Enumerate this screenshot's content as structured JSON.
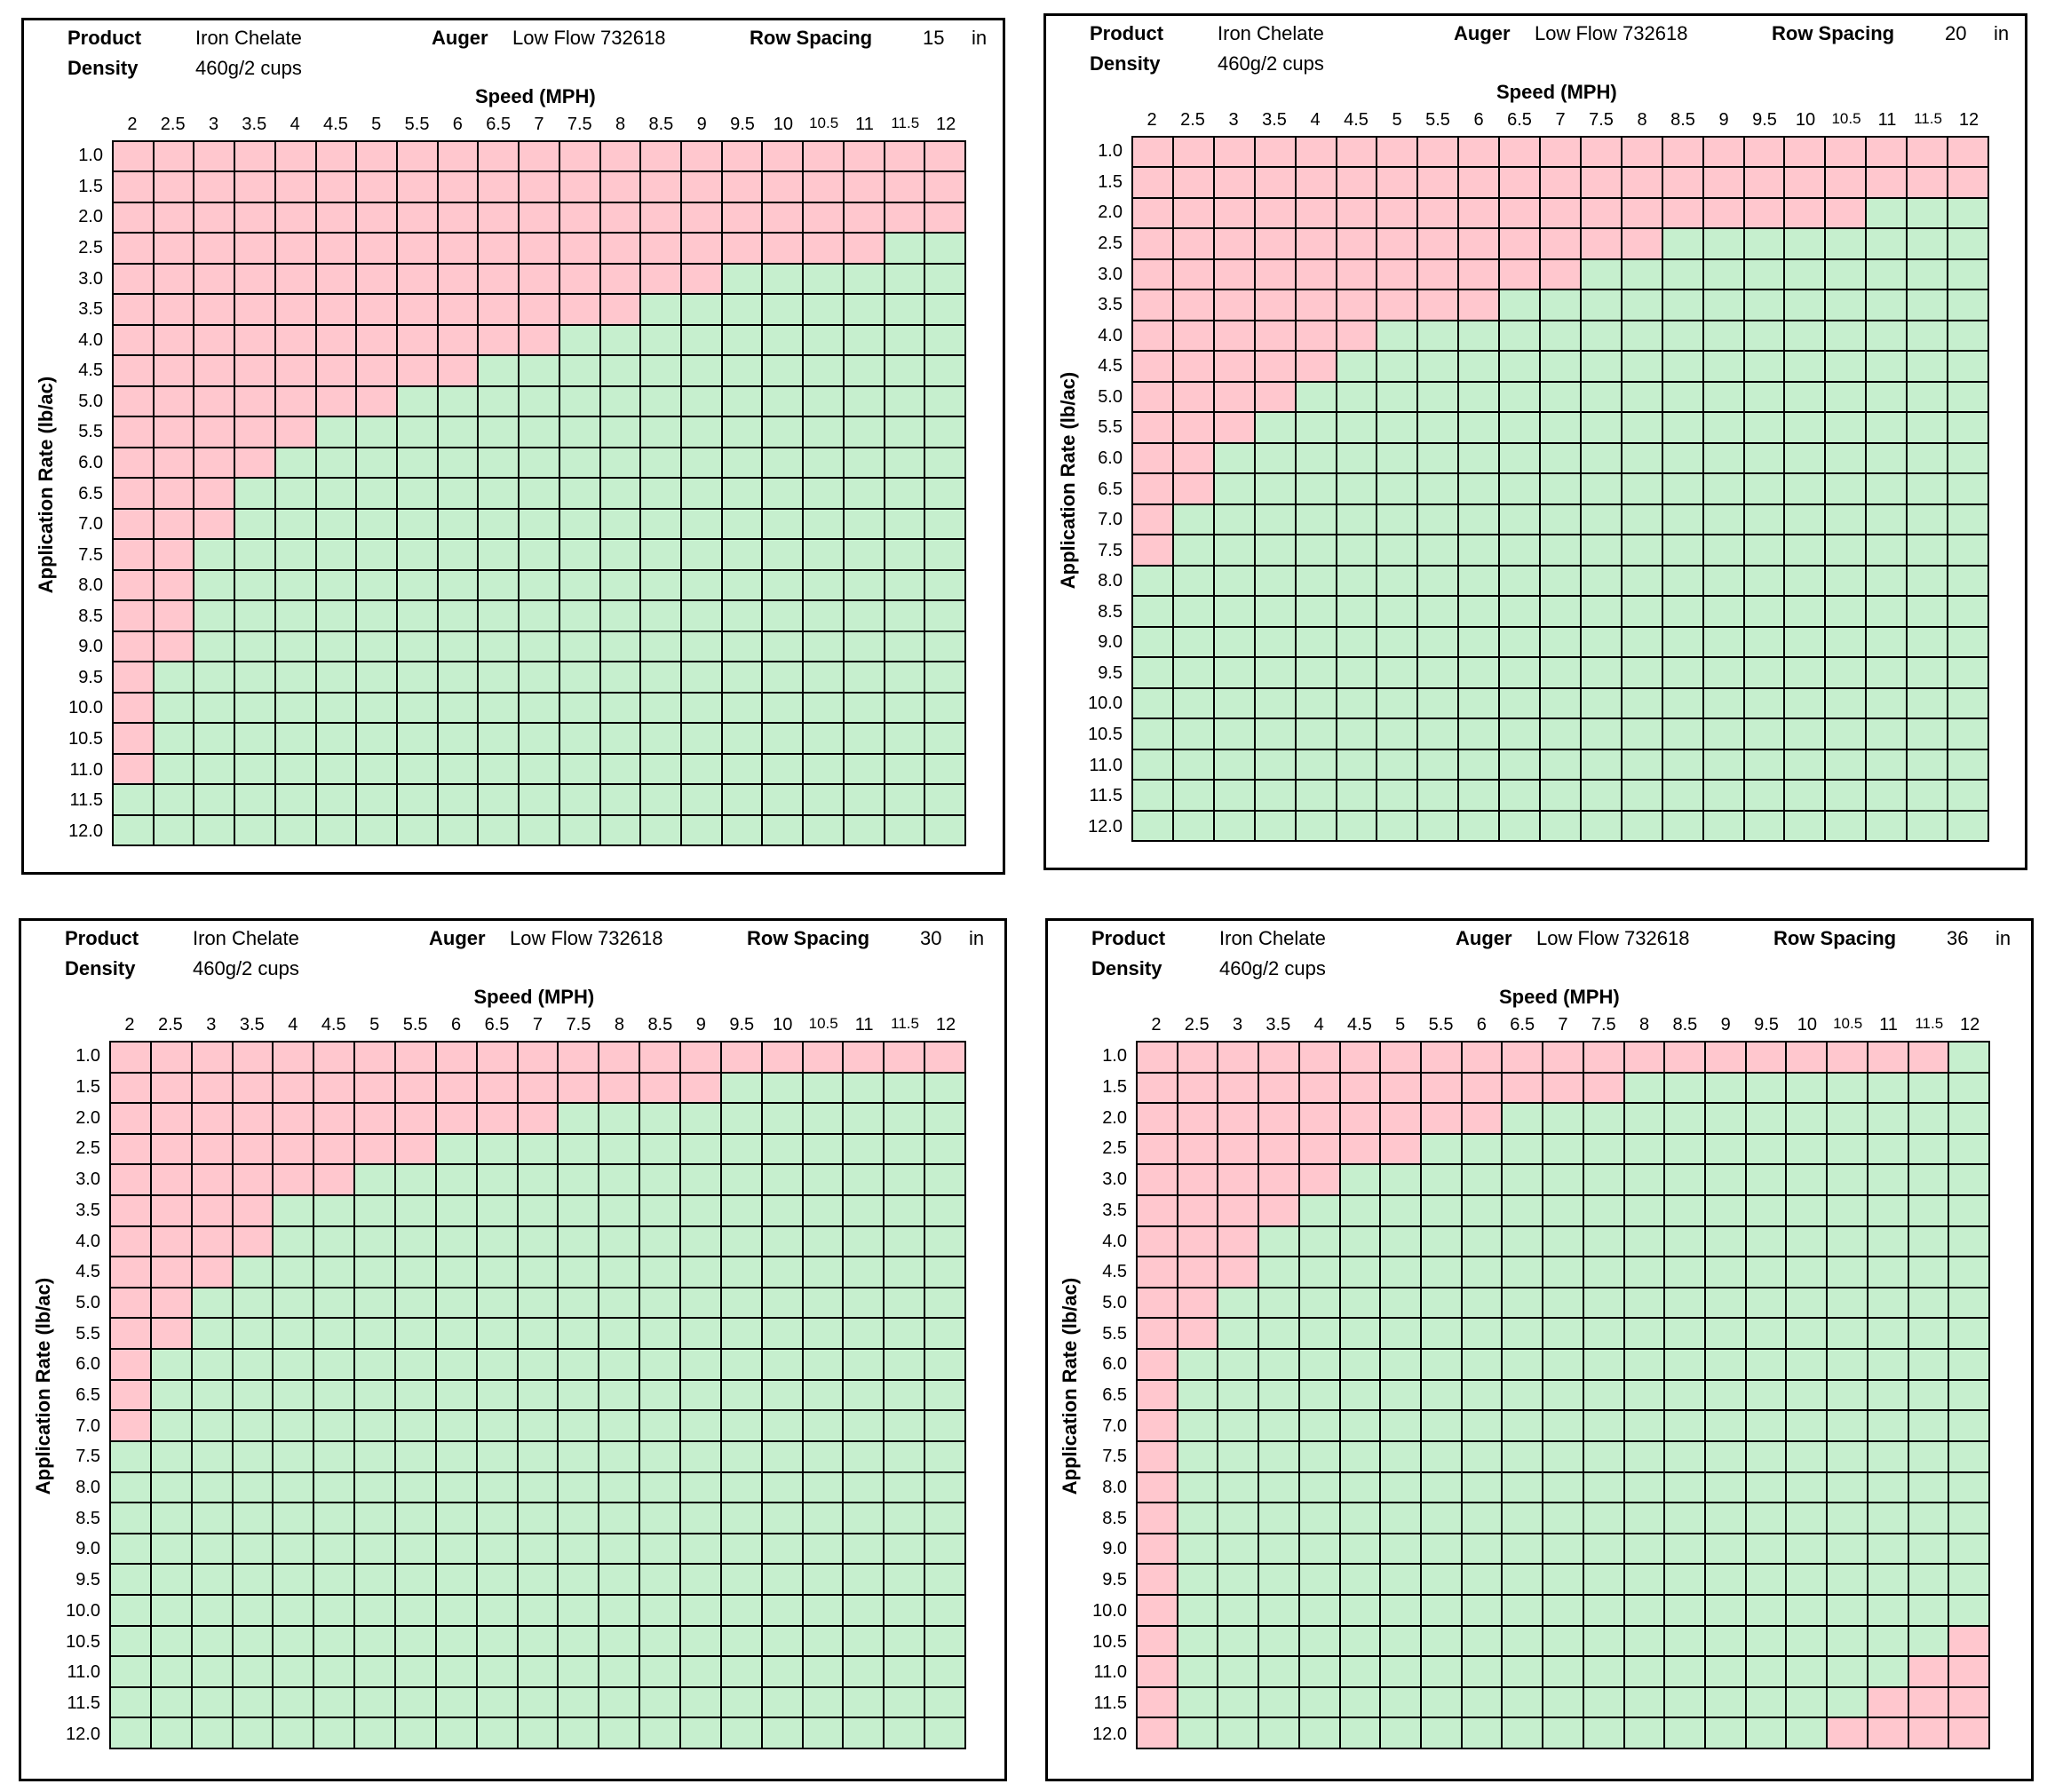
{
  "labels": {
    "product": "Product",
    "density": "Density",
    "auger": "Auger",
    "row_spacing": "Row Spacing",
    "unit": "in",
    "speed_title": "Speed (MPH)",
    "y_title": "Application Rate (lb/ac)"
  },
  "colors": {
    "exceeds": "#ffc7ce",
    "ok": "#c6efce",
    "line": "#000000"
  },
  "speeds": [
    "2",
    "2.5",
    "3",
    "3.5",
    "4",
    "4.5",
    "5",
    "5.5",
    "6",
    "6.5",
    "7",
    "7.5",
    "8",
    "8.5",
    "9",
    "9.5",
    "10",
    "10.5",
    "11",
    "11.5",
    "12"
  ],
  "rates": [
    "1.0",
    "1.5",
    "2.0",
    "2.5",
    "3.0",
    "3.5",
    "4.0",
    "4.5",
    "5.0",
    "5.5",
    "6.0",
    "6.5",
    "7.0",
    "7.5",
    "8.0",
    "8.5",
    "9.0",
    "9.5",
    "10.0",
    "10.5",
    "11.0",
    "11.5",
    "12.0"
  ],
  "chart_data": [
    {
      "type": "table",
      "product": "Iron Chelate",
      "density": "460g/2 cups",
      "auger": "Low Flow 732618",
      "row_spacing": "15",
      "legend_pink_cells_per_row": [
        21,
        21,
        21,
        19,
        15,
        13,
        11,
        9,
        7,
        5,
        4,
        3,
        3,
        2,
        2,
        2,
        2,
        1,
        1,
        1,
        1,
        0,
        0
      ]
    },
    {
      "type": "table",
      "product": "Iron Chelate",
      "density": "460g/2 cups",
      "auger": "Low Flow 732618",
      "row_spacing": "20",
      "legend_pink_cells_per_row": [
        21,
        21,
        18,
        13,
        11,
        9,
        6,
        5,
        4,
        3,
        2,
        2,
        1,
        1,
        0,
        0,
        0,
        0,
        0,
        0,
        -1,
        -1,
        -1
      ]
    },
    {
      "type": "table",
      "product": "Iron Chelate",
      "density": "460g/2 cups",
      "auger": "Low Flow 732618",
      "row_spacing": "30",
      "legend_pink_cells_per_row": [
        21,
        15,
        11,
        8,
        6,
        4,
        4,
        3,
        2,
        2,
        1,
        1,
        1,
        0,
        0,
        0,
        0,
        0,
        0,
        0,
        0,
        0,
        0
      ]
    },
    {
      "type": "table",
      "product": "Iron Chelate",
      "density": "460g/2 cups",
      "auger": "Low Flow 732618",
      "row_spacing": "36",
      "legend_pink_cells_per_row": [
        20,
        12,
        9,
        7,
        5,
        4,
        3,
        3,
        2,
        2,
        1,
        1,
        1,
        1,
        1,
        1,
        1,
        1,
        1,
        1,
        1,
        1,
        1
      ],
      "legend_pink_cells_right_per_row": [
        0,
        0,
        0,
        0,
        0,
        0,
        0,
        0,
        0,
        0,
        0,
        0,
        0,
        0,
        0,
        0,
        0,
        0,
        0,
        1,
        2,
        3,
        4
      ]
    }
  ]
}
